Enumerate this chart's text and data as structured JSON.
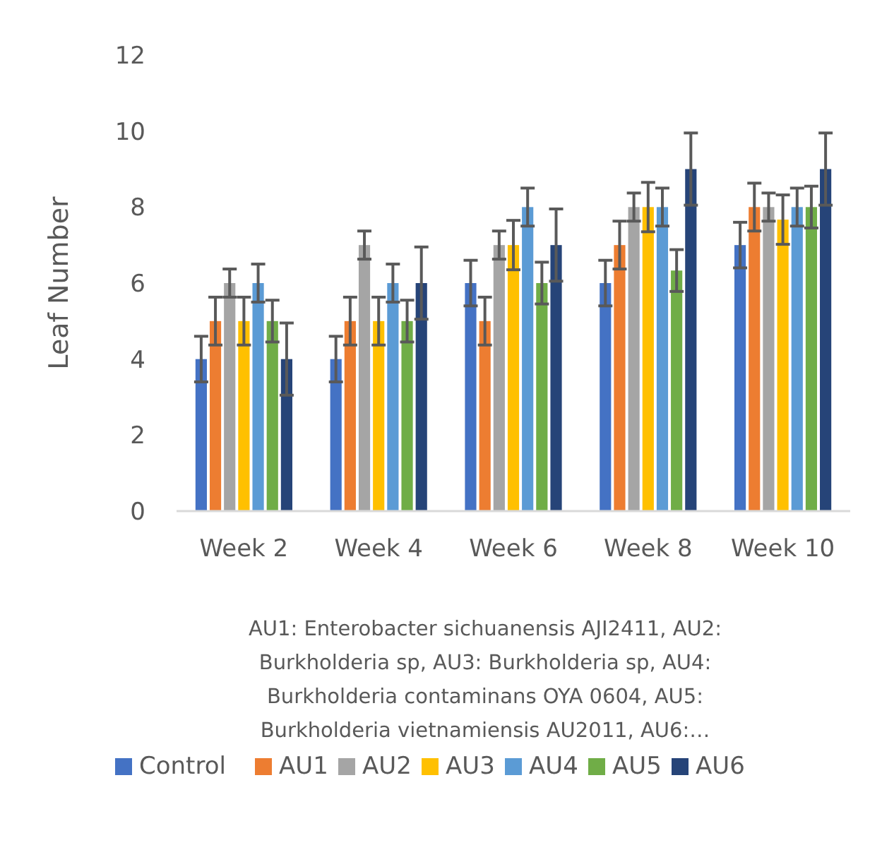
{
  "chart_data": {
    "type": "bar",
    "ylabel": "Leaf Number",
    "categories": [
      "Week 2",
      "Week 4",
      "Week 6",
      "Week 8",
      "Week 10"
    ],
    "ylim": [
      0,
      12
    ],
    "yticks": [
      0,
      2,
      4,
      6,
      8,
      10,
      12
    ],
    "grid": false,
    "legend": "bottom",
    "annotations": [
      "AU1: Enterobacter sichuanensis AJI2411, AU2: Burkholderia sp, AU3: Burkholderia sp, AU4: Burkholderia contaminans OYA 0604, AU5: Burkholderia vietnamiensis AU2011, AU6:…"
    ],
    "series": [
      {
        "name": "Control",
        "color": "#4472c4",
        "values": [
          4,
          4,
          6,
          6,
          7
        ],
        "errors": [
          0.6,
          0.6,
          0.6,
          0.6,
          0.6
        ]
      },
      {
        "name": "AU1",
        "color": "#ed7d31",
        "values": [
          5,
          5,
          5,
          7,
          8
        ],
        "errors": [
          0.63,
          0.63,
          0.63,
          0.63,
          0.63
        ]
      },
      {
        "name": "AU2",
        "color": "#a5a5a5",
        "values": [
          6,
          7,
          7,
          8,
          8
        ],
        "errors": [
          0.37,
          0.37,
          0.37,
          0.37,
          0.37
        ]
      },
      {
        "name": "AU3",
        "color": "#ffc000",
        "values": [
          5,
          5,
          7,
          8,
          7.67
        ],
        "errors": [
          0.63,
          0.63,
          0.65,
          0.65,
          0.65
        ]
      },
      {
        "name": "AU4",
        "color": "#5b9bd5",
        "values": [
          6,
          6,
          8,
          8,
          8
        ],
        "errors": [
          0.5,
          0.5,
          0.5,
          0.5,
          0.5
        ]
      },
      {
        "name": "AU5",
        "color": "#70ad47",
        "values": [
          5,
          5,
          6,
          6.33,
          8
        ],
        "errors": [
          0.55,
          0.55,
          0.55,
          0.55,
          0.55
        ]
      },
      {
        "name": "AU6",
        "color": "#264478",
        "values": [
          4,
          6,
          7,
          9,
          9
        ],
        "errors": [
          0.95,
          0.95,
          0.95,
          0.95,
          0.95
        ]
      }
    ]
  }
}
